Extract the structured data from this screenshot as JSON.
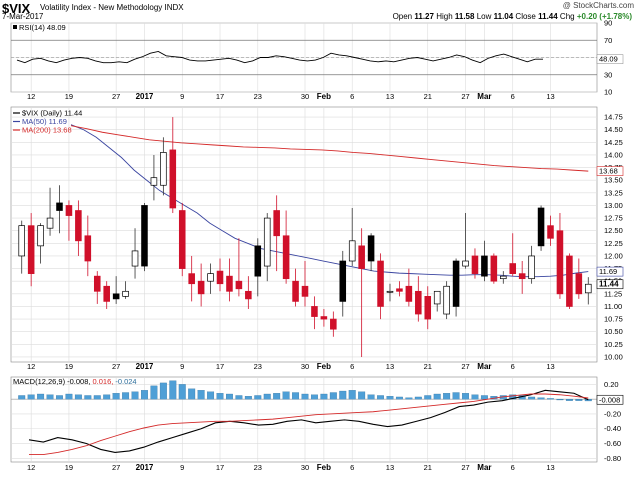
{
  "header": {
    "symbol": "$VIX",
    "description": "Volatility Index - New Methodology",
    "exchange": "INDX",
    "date": "7-Mar-2017",
    "brand": "@ StockCharts.com",
    "open_label": "Open",
    "open": "11.27",
    "high_label": "High",
    "high": "11.58",
    "low_label": "Low",
    "low": "11.04",
    "close_label": "Close",
    "close": "11.44",
    "chg_label": "Chg",
    "chg": "+0.20 (+1.78%)"
  },
  "chart_data": [
    {
      "type": "line",
      "panel": "rsi",
      "legend": "RSI(14) 48.09",
      "ylim": [
        10,
        90
      ],
      "ticks": [
        10,
        30,
        50,
        70,
        90
      ],
      "reference_lines": [
        30,
        70
      ],
      "last_value_tag": "48.09",
      "series": [
        {
          "name": "RSI(14)",
          "color": "#000000",
          "values": [
            47,
            44,
            48,
            49,
            46,
            44,
            47,
            49,
            50,
            49,
            46,
            44,
            44,
            45,
            44,
            48,
            51,
            55,
            57,
            52,
            51,
            50,
            47,
            46,
            46,
            47,
            48,
            49,
            47,
            44,
            46,
            50,
            50,
            52,
            51,
            49,
            47,
            46,
            47,
            50,
            55,
            53,
            52,
            50,
            48,
            46,
            45,
            46,
            45,
            47,
            49,
            50,
            48,
            46,
            48,
            50,
            53,
            51,
            47,
            44,
            49,
            52,
            54,
            51,
            48,
            45,
            48,
            48
          ]
        }
      ]
    },
    {
      "type": "candlestick",
      "panel": "price",
      "legend": [
        "$VIX (Daily) 11.44",
        "MA(50) 11.69",
        "MA(200) 13.68"
      ],
      "ylim": [
        9.9,
        14.95
      ],
      "ticks": [
        10.0,
        10.25,
        10.5,
        10.75,
        11.0,
        11.25,
        11.5,
        11.75,
        12.0,
        12.25,
        12.5,
        12.75,
        13.0,
        13.25,
        13.5,
        13.75,
        14.0,
        14.25,
        14.5,
        14.75
      ],
      "last_value_tags": {
        "close": "11.44",
        "ma50": "11.69",
        "ma200": "13.68"
      },
      "candles": [
        {
          "o": 12.0,
          "h": 12.7,
          "l": 11.65,
          "c": 12.6
        },
        {
          "o": 12.6,
          "h": 12.85,
          "l": 11.4,
          "c": 11.65
        },
        {
          "o": 12.2,
          "h": 12.65,
          "l": 11.85,
          "c": 12.6
        },
        {
          "o": 12.55,
          "h": 13.35,
          "l": 12.4,
          "c": 12.75
        },
        {
          "o": 12.9,
          "h": 13.4,
          "l": 12.45,
          "c": 13.05
        },
        {
          "o": 13.0,
          "h": 13.1,
          "l": 12.3,
          "c": 12.8
        },
        {
          "o": 12.9,
          "h": 13.1,
          "l": 12.0,
          "c": 12.3
        },
        {
          "o": 12.4,
          "h": 12.8,
          "l": 11.6,
          "c": 11.9
        },
        {
          "o": 11.6,
          "h": 11.7,
          "l": 11.05,
          "c": 11.3
        },
        {
          "o": 11.4,
          "h": 11.5,
          "l": 10.95,
          "c": 11.1
        },
        {
          "o": 11.15,
          "h": 11.6,
          "l": 11.05,
          "c": 11.25
        },
        {
          "o": 11.2,
          "h": 11.5,
          "l": 11.15,
          "c": 11.3
        },
        {
          "o": 11.8,
          "h": 12.55,
          "l": 11.55,
          "c": 12.1
        },
        {
          "o": 11.8,
          "h": 13.05,
          "l": 11.7,
          "c": 13.0
        },
        {
          "o": 13.4,
          "h": 14.0,
          "l": 13.1,
          "c": 13.55
        },
        {
          "o": 13.4,
          "h": 14.35,
          "l": 13.2,
          "c": 14.05
        },
        {
          "o": 14.1,
          "h": 14.75,
          "l": 12.85,
          "c": 12.95
        },
        {
          "o": 12.9,
          "h": 13.05,
          "l": 11.6,
          "c": 11.75
        },
        {
          "o": 11.65,
          "h": 12.0,
          "l": 11.1,
          "c": 11.45
        },
        {
          "o": 11.5,
          "h": 11.85,
          "l": 11.0,
          "c": 11.25
        },
        {
          "o": 11.5,
          "h": 11.85,
          "l": 11.25,
          "c": 11.65
        },
        {
          "o": 11.7,
          "h": 11.95,
          "l": 11.3,
          "c": 11.45
        },
        {
          "o": 11.6,
          "h": 11.95,
          "l": 11.1,
          "c": 11.3
        },
        {
          "o": 11.5,
          "h": 12.35,
          "l": 11.2,
          "c": 11.35
        },
        {
          "o": 11.3,
          "h": 11.6,
          "l": 10.95,
          "c": 11.15
        },
        {
          "o": 11.6,
          "h": 12.35,
          "l": 11.2,
          "c": 12.2
        },
        {
          "o": 11.8,
          "h": 12.85,
          "l": 11.5,
          "c": 12.75
        },
        {
          "o": 12.9,
          "h": 13.2,
          "l": 11.7,
          "c": 12.4
        },
        {
          "o": 12.4,
          "h": 12.9,
          "l": 11.45,
          "c": 11.55
        },
        {
          "o": 11.5,
          "h": 11.75,
          "l": 11.0,
          "c": 11.1
        },
        {
          "o": 11.4,
          "h": 11.9,
          "l": 11.0,
          "c": 11.2
        },
        {
          "o": 11.0,
          "h": 11.2,
          "l": 10.55,
          "c": 10.8
        },
        {
          "o": 10.8,
          "h": 10.95,
          "l": 10.6,
          "c": 10.75
        },
        {
          "o": 10.75,
          "h": 10.9,
          "l": 10.4,
          "c": 10.55
        },
        {
          "o": 11.1,
          "h": 12.1,
          "l": 10.8,
          "c": 11.9
        },
        {
          "o": 11.9,
          "h": 12.95,
          "l": 11.8,
          "c": 12.3
        },
        {
          "o": 12.2,
          "h": 12.55,
          "l": 10.0,
          "c": 11.75
        },
        {
          "o": 11.9,
          "h": 12.45,
          "l": 11.7,
          "c": 12.4
        },
        {
          "o": 11.9,
          "h": 12.05,
          "l": 10.75,
          "c": 11.0
        },
        {
          "o": 11.3,
          "h": 11.45,
          "l": 11.1,
          "c": 11.3
        },
        {
          "o": 11.35,
          "h": 11.5,
          "l": 11.2,
          "c": 11.3
        },
        {
          "o": 11.4,
          "h": 11.75,
          "l": 11.0,
          "c": 11.1
        },
        {
          "o": 11.3,
          "h": 11.6,
          "l": 10.7,
          "c": 10.85
        },
        {
          "o": 11.2,
          "h": 11.4,
          "l": 10.55,
          "c": 10.75
        },
        {
          "o": 11.05,
          "h": 11.3,
          "l": 10.9,
          "c": 11.3
        },
        {
          "o": 10.85,
          "h": 11.5,
          "l": 10.75,
          "c": 11.4
        },
        {
          "o": 11.0,
          "h": 11.95,
          "l": 10.8,
          "c": 11.9
        },
        {
          "o": 11.8,
          "h": 12.85,
          "l": 11.75,
          "c": 11.9
        },
        {
          "o": 12.0,
          "h": 12.15,
          "l": 11.55,
          "c": 11.65
        },
        {
          "o": 11.6,
          "h": 12.3,
          "l": 11.5,
          "c": 12.0
        },
        {
          "o": 12.0,
          "h": 12.05,
          "l": 11.45,
          "c": 11.5
        },
        {
          "o": 11.55,
          "h": 11.7,
          "l": 11.45,
          "c": 11.6
        },
        {
          "o": 11.85,
          "h": 12.45,
          "l": 11.6,
          "c": 11.65
        },
        {
          "o": 11.65,
          "h": 11.9,
          "l": 11.25,
          "c": 11.55
        },
        {
          "o": 11.55,
          "h": 12.2,
          "l": 11.45,
          "c": 12.0
        },
        {
          "o": 12.2,
          "h": 13.0,
          "l": 12.1,
          "c": 12.95
        },
        {
          "o": 12.6,
          "h": 12.8,
          "l": 12.2,
          "c": 12.35
        },
        {
          "o": 12.5,
          "h": 12.85,
          "l": 11.15,
          "c": 11.25
        },
        {
          "o": 12.0,
          "h": 12.05,
          "l": 10.95,
          "c": 11.0
        },
        {
          "o": 11.65,
          "h": 11.95,
          "l": 11.15,
          "c": 11.25
        },
        {
          "o": 11.27,
          "h": 11.58,
          "l": 11.04,
          "c": 11.44
        }
      ],
      "series": [
        {
          "name": "MA(50)",
          "color": "#3a45a0",
          "values": [
            14.6,
            14.5,
            14.35,
            14.15,
            13.95,
            13.7,
            13.5,
            13.3,
            13.15,
            13.0,
            12.85,
            12.65,
            12.5,
            12.35,
            12.25,
            12.15,
            12.1,
            12.05,
            12.0,
            11.95,
            11.9,
            11.85,
            11.8,
            11.75,
            11.7,
            11.68,
            11.66,
            11.65,
            11.64,
            11.63,
            11.62,
            11.62,
            11.63,
            11.63,
            11.62,
            11.6,
            11.59,
            11.59,
            11.6,
            11.62,
            11.66,
            11.69
          ]
        },
        {
          "name": "MA(200)",
          "color": "#d42a2a",
          "values": [
            14.58,
            14.52,
            14.45,
            14.4,
            14.35,
            14.3,
            14.27,
            14.24,
            14.22,
            14.2,
            14.18,
            14.16,
            14.15,
            14.14,
            14.12,
            14.11,
            14.1,
            14.08,
            14.05,
            14.03,
            14.0,
            13.97,
            13.94,
            13.91,
            13.88,
            13.85,
            13.82,
            13.79,
            13.77,
            13.75,
            13.73,
            13.72,
            13.7,
            13.68
          ]
        }
      ]
    },
    {
      "type": "bar+line",
      "panel": "macd",
      "legend": [
        "MACD(12,26,9)",
        "-0.008,",
        "0.016,",
        "-0.024"
      ],
      "ylim": [
        -0.85,
        0.3
      ],
      "ticks": [
        0.2,
        0.0,
        -0.2,
        -0.4,
        -0.6,
        -0.8
      ],
      "last_value_tag": "-0.008",
      "histogram": [
        0.05,
        0.06,
        0.07,
        0.06,
        0.05,
        0.07,
        0.06,
        0.05,
        0.05,
        0.06,
        0.08,
        0.09,
        0.1,
        0.12,
        0.18,
        0.22,
        0.25,
        0.2,
        0.14,
        0.12,
        0.1,
        0.08,
        0.07,
        0.05,
        0.04,
        0.05,
        0.07,
        0.08,
        0.1,
        0.09,
        0.07,
        0.06,
        0.07,
        0.09,
        0.11,
        0.12,
        0.1,
        0.06,
        0.05,
        0.04,
        0.03,
        0.02,
        0.03,
        0.05,
        0.07,
        0.08,
        0.09,
        0.08,
        0.06,
        0.05,
        0.04,
        0.05,
        0.06,
        0.05,
        0.03,
        0.02,
        0.01,
        -0.01,
        -0.02,
        -0.02,
        -0.024
      ],
      "series": [
        {
          "name": "MACD",
          "color": "#000000",
          "values": [
            -0.55,
            -0.58,
            -0.52,
            -0.55,
            -0.6,
            -0.68,
            -0.72,
            -0.7,
            -0.65,
            -0.58,
            -0.52,
            -0.46,
            -0.4,
            -0.32,
            -0.3,
            -0.32,
            -0.35,
            -0.34,
            -0.3,
            -0.28,
            -0.32,
            -0.3,
            -0.28,
            -0.3,
            -0.34,
            -0.37,
            -0.35,
            -0.3,
            -0.25,
            -0.18,
            -0.1,
            -0.08,
            -0.04,
            -0.02,
            0.02,
            0.06,
            0.12,
            0.1,
            0.08,
            -0.008
          ]
        },
        {
          "name": "Signal",
          "color": "#d42a2a",
          "values": [
            -0.75,
            -0.75,
            -0.72,
            -0.68,
            -0.63,
            -0.56,
            -0.5,
            -0.44,
            -0.39,
            -0.35,
            -0.33,
            -0.32,
            -0.31,
            -0.3,
            -0.3,
            -0.29,
            -0.28,
            -0.27,
            -0.25,
            -0.23,
            -0.21,
            -0.2,
            -0.19,
            -0.18,
            -0.17,
            -0.15,
            -0.13,
            -0.11,
            -0.09,
            -0.07,
            -0.05,
            -0.03,
            0.0,
            0.03,
            0.05,
            0.07,
            0.07,
            0.06,
            0.04,
            0.016
          ]
        }
      ]
    }
  ],
  "x_axis": {
    "labels": [
      {
        "text": "12",
        "i": 1,
        "bold": false
      },
      {
        "text": "19",
        "i": 5,
        "bold": false
      },
      {
        "text": "27",
        "i": 10,
        "bold": false
      },
      {
        "text": "2017",
        "i": 13,
        "bold": true
      },
      {
        "text": "9",
        "i": 17,
        "bold": false
      },
      {
        "text": "17",
        "i": 21,
        "bold": false
      },
      {
        "text": "23",
        "i": 25,
        "bold": false
      },
      {
        "text": "30",
        "i": 30,
        "bold": false
      },
      {
        "text": "Feb",
        "i": 32,
        "bold": true
      },
      {
        "text": "6",
        "i": 35,
        "bold": false
      },
      {
        "text": "13",
        "i": 39,
        "bold": false
      },
      {
        "text": "21",
        "i": 43,
        "bold": false
      },
      {
        "text": "27",
        "i": 47,
        "bold": false
      },
      {
        "text": "Mar",
        "i": 49,
        "bold": true
      },
      {
        "text": "6",
        "i": 52,
        "bold": false
      },
      {
        "text": "13",
        "i": 56,
        "bold": false
      }
    ]
  },
  "colors": {
    "up": "#000000",
    "down": "#d0102a",
    "hist": "#4f9fd6",
    "grid": "#dcdcdc"
  }
}
